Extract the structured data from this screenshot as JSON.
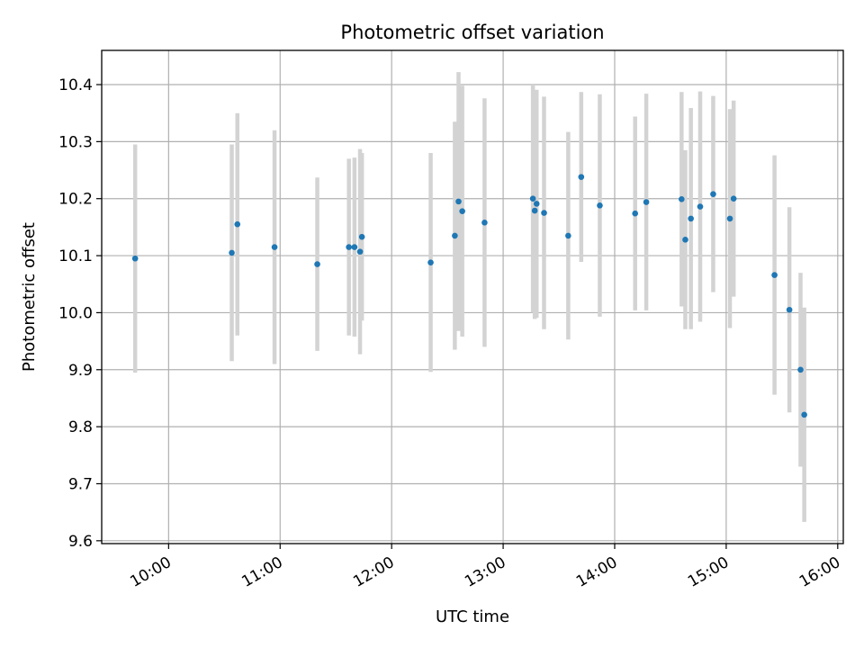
{
  "chart_data": {
    "type": "scatter",
    "title": "Photometric offset variation",
    "xlabel": "UTC time",
    "ylabel": "Photometric offset",
    "xlim": [
      "09:24",
      "16:03"
    ],
    "ylim": [
      9.595,
      10.46
    ],
    "x_ticks": [
      "10:00",
      "11:00",
      "12:00",
      "13:00",
      "14:00",
      "15:00",
      "16:00"
    ],
    "y_ticks": [
      9.6,
      9.7,
      9.8,
      9.9,
      10.0,
      10.1,
      10.2,
      10.3,
      10.4
    ],
    "y_tick_labels": [
      "9.6",
      "9.7",
      "9.8",
      "9.9",
      "10.0",
      "10.1",
      "10.2",
      "10.3",
      "10.4"
    ],
    "grid": true,
    "colors": {
      "point": "#1f77b4",
      "errorbar": "#d3d3d3",
      "grid": "#b0b0b0"
    },
    "points": [
      {
        "x": "09:42",
        "y": 10.095,
        "err": 0.2
      },
      {
        "x": "10:34",
        "y": 10.105,
        "err": 0.19
      },
      {
        "x": "10:37",
        "y": 10.155,
        "err": 0.195
      },
      {
        "x": "10:57",
        "y": 10.115,
        "err": 0.205
      },
      {
        "x": "11:20",
        "y": 10.085,
        "err": 0.152
      },
      {
        "x": "11:37",
        "y": 10.115,
        "err": 0.155
      },
      {
        "x": "11:40",
        "y": 10.115,
        "err": 0.157
      },
      {
        "x": "11:43",
        "y": 10.107,
        "err": 0.18
      },
      {
        "x": "11:44",
        "y": 10.133,
        "err": 0.147
      },
      {
        "x": "12:21",
        "y": 10.088,
        "err": 0.192
      },
      {
        "x": "12:34",
        "y": 10.135,
        "err": 0.2
      },
      {
        "x": "12:36",
        "y": 10.195,
        "err": 0.227
      },
      {
        "x": "12:38",
        "y": 10.178,
        "err": 0.22
      },
      {
        "x": "12:50",
        "y": 10.158,
        "err": 0.218
      },
      {
        "x": "13:16",
        "y": 10.2,
        "err": 0.2
      },
      {
        "x": "13:17",
        "y": 10.179,
        "err": 0.19
      },
      {
        "x": "13:18",
        "y": 10.191,
        "err": 0.2
      },
      {
        "x": "13:22",
        "y": 10.175,
        "err": 0.204
      },
      {
        "x": "13:35",
        "y": 10.135,
        "err": 0.182
      },
      {
        "x": "13:42",
        "y": 10.238,
        "err": 0.149
      },
      {
        "x": "13:52",
        "y": 10.188,
        "err": 0.195
      },
      {
        "x": "14:11",
        "y": 10.174,
        "err": 0.17
      },
      {
        "x": "14:17",
        "y": 10.194,
        "err": 0.19
      },
      {
        "x": "14:36",
        "y": 10.199,
        "err": 0.188
      },
      {
        "x": "14:38",
        "y": 10.128,
        "err": 0.157
      },
      {
        "x": "14:41",
        "y": 10.165,
        "err": 0.194
      },
      {
        "x": "14:46",
        "y": 10.186,
        "err": 0.202
      },
      {
        "x": "14:53",
        "y": 10.208,
        "err": 0.172
      },
      {
        "x": "15:02",
        "y": 10.165,
        "err": 0.192
      },
      {
        "x": "15:04",
        "y": 10.2,
        "err": 0.172
      },
      {
        "x": "15:26",
        "y": 10.066,
        "err": 0.21
      },
      {
        "x": "15:34",
        "y": 10.005,
        "err": 0.18
      },
      {
        "x": "15:40",
        "y": 9.9,
        "err": 0.17
      },
      {
        "x": "15:42",
        "y": 9.821,
        "err": 0.188
      }
    ]
  }
}
